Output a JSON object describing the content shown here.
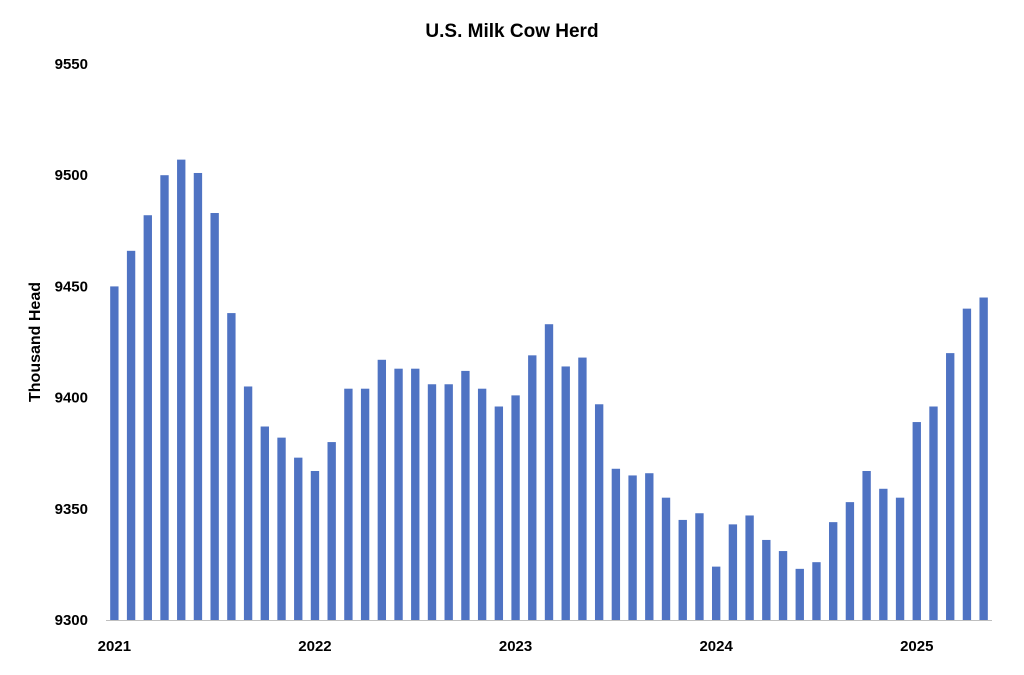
{
  "chart_data": {
    "type": "bar",
    "title": "U.S. Milk Cow Herd",
    "xlabel": "",
    "ylabel": "Thousand Head",
    "ylim": [
      9300,
      9550
    ],
    "yticks": [
      "9550",
      "9500",
      "9450",
      "9400",
      "9350",
      "9300"
    ],
    "xtick_labels": [
      {
        "label": "2021",
        "index": 0
      },
      {
        "label": "2022",
        "index": 12
      },
      {
        "label": "2023",
        "index": 24
      },
      {
        "label": "2024",
        "index": 36
      },
      {
        "label": "2025",
        "index": 48
      }
    ],
    "grid": false,
    "legend": "none",
    "bar_color": "#4F73C3",
    "categories": [
      "2021-01",
      "2021-02",
      "2021-03",
      "2021-04",
      "2021-05",
      "2021-06",
      "2021-07",
      "2021-08",
      "2021-09",
      "2021-10",
      "2021-11",
      "2021-12",
      "2022-01",
      "2022-02",
      "2022-03",
      "2022-04",
      "2022-05",
      "2022-06",
      "2022-07",
      "2022-08",
      "2022-09",
      "2022-10",
      "2022-11",
      "2022-12",
      "2023-01",
      "2023-02",
      "2023-03",
      "2023-04",
      "2023-05",
      "2023-06",
      "2023-07",
      "2023-08",
      "2023-09",
      "2023-10",
      "2023-11",
      "2023-12",
      "2024-01",
      "2024-02",
      "2024-03",
      "2024-04",
      "2024-05",
      "2024-06",
      "2024-07",
      "2024-08",
      "2024-09",
      "2024-10",
      "2024-11",
      "2024-12",
      "2025-01",
      "2025-02",
      "2025-03",
      "2025-04",
      "2025-05"
    ],
    "values": [
      9450,
      9466,
      9482,
      9500,
      9507,
      9501,
      9483,
      9438,
      9405,
      9387,
      9382,
      9373,
      9367,
      9380,
      9404,
      9404,
      9417,
      9413,
      9413,
      9406,
      9406,
      9412,
      9404,
      9396,
      9401,
      9419,
      9433,
      9414,
      9418,
      9397,
      9368,
      9365,
      9366,
      9355,
      9345,
      9348,
      9324,
      9343,
      9347,
      9336,
      9331,
      9323,
      9326,
      9344,
      9353,
      9367,
      9359,
      9355,
      9389,
      9396,
      9420,
      9440,
      9445
    ]
  }
}
